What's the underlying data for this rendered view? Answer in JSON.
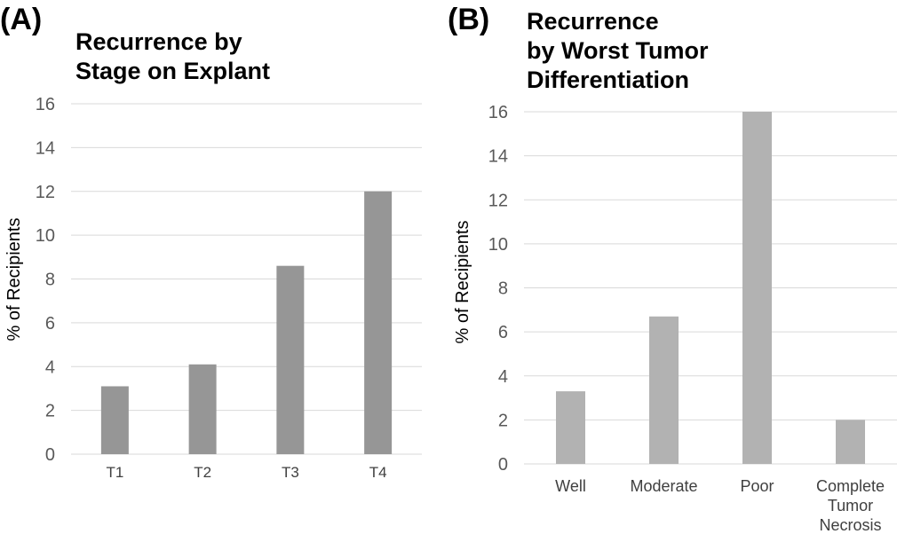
{
  "chart_data": [
    {
      "type": "bar",
      "panel_label": "(A)",
      "title": "Recurrence by Stage on Explant",
      "title_lines": [
        "Recurrence by",
        "Stage on Explant"
      ],
      "ylabel": "% of Recipients",
      "xlabel": "",
      "categories": [
        "T1",
        "T2",
        "T3",
        "T4"
      ],
      "values": [
        3.1,
        4.1,
        8.6,
        12
      ],
      "ylim": [
        0,
        16
      ],
      "yticks": [
        "0",
        "2",
        "4",
        "6",
        "8",
        "10",
        "12",
        "14",
        "16"
      ],
      "grid": true,
      "bar_color": "#969696"
    },
    {
      "type": "bar",
      "panel_label": "(B)",
      "title": "Recurrence by Worst Tumor Differentiation",
      "title_lines": [
        "Recurrence",
        "by Worst Tumor",
        "Differentiation"
      ],
      "ylabel": "% of Recipients",
      "xlabel": "",
      "categories": [
        "Well",
        "Moderate",
        "Poor",
        "Complete Tumor Necrosis"
      ],
      "category_lines": [
        [
          "Well"
        ],
        [
          "Moderate"
        ],
        [
          "Poor"
        ],
        [
          "Complete",
          "Tumor",
          "Necrosis"
        ]
      ],
      "values": [
        3.3,
        6.7,
        16,
        2
      ],
      "ylim": [
        0,
        16
      ],
      "yticks": [
        "0",
        "2",
        "4",
        "6",
        "8",
        "10",
        "12",
        "14",
        "16"
      ],
      "grid": true,
      "bar_color": "#b2b2b2"
    }
  ]
}
